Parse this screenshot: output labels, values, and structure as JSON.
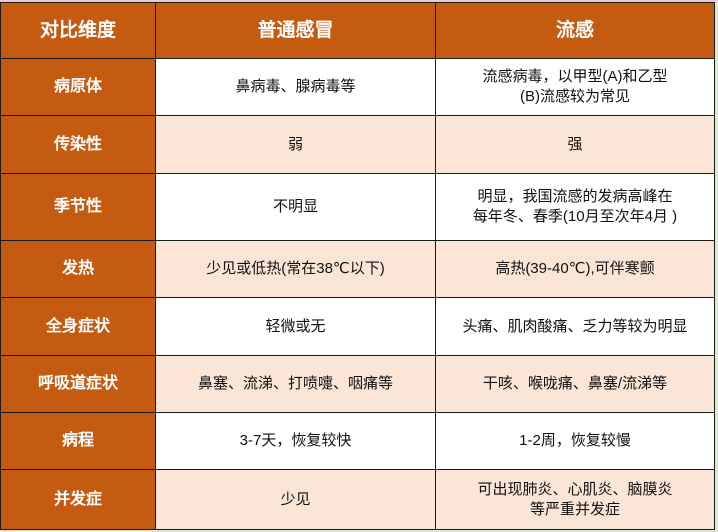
{
  "colors": {
    "header_bg": "#c55a11",
    "header_text": "#ffffff",
    "row_alt_bg": "#fbe5d6",
    "row_bg": "#ffffff"
  },
  "headers": [
    "对比维度",
    "普通感冒",
    "流感"
  ],
  "rows": [
    {
      "dimension": "病原体",
      "cold": [
        "鼻病毒、腺病毒等"
      ],
      "flu": [
        "流感病毒，以甲型(A)和乙型",
        "(B)流感较为常见"
      ]
    },
    {
      "dimension": "传染性",
      "cold": [
        "弱"
      ],
      "flu": [
        "强"
      ]
    },
    {
      "dimension": "季节性",
      "cold": [
        "不明显"
      ],
      "flu": [
        "明显，我国流感的发病高峰在",
        "每年冬、春季(10月至次年4月 )"
      ]
    },
    {
      "dimension": "发热",
      "cold": [
        "少见或低热(常在38℃以下)"
      ],
      "flu": [
        "高热(39-40℃),可伴寒颤"
      ]
    },
    {
      "dimension": "全身症状",
      "cold": [
        "轻微或无"
      ],
      "flu": [
        "头痛、肌肉酸痛、乏力等较为明显"
      ]
    },
    {
      "dimension": "呼吸道症状",
      "cold": [
        "鼻塞、流涕、打喷嚏、咽痛等"
      ],
      "flu": [
        "干咳、喉咙痛、鼻塞/流涕等"
      ]
    },
    {
      "dimension": "病程",
      "cold": [
        "3-7天，恢复较快"
      ],
      "flu": [
        "1-2周，恢复较慢"
      ]
    },
    {
      "dimension": "并发症",
      "cold": [
        "少见"
      ],
      "flu": [
        "可出现肺炎、心肌炎、脑膜炎",
        "等严重并发症"
      ]
    }
  ]
}
